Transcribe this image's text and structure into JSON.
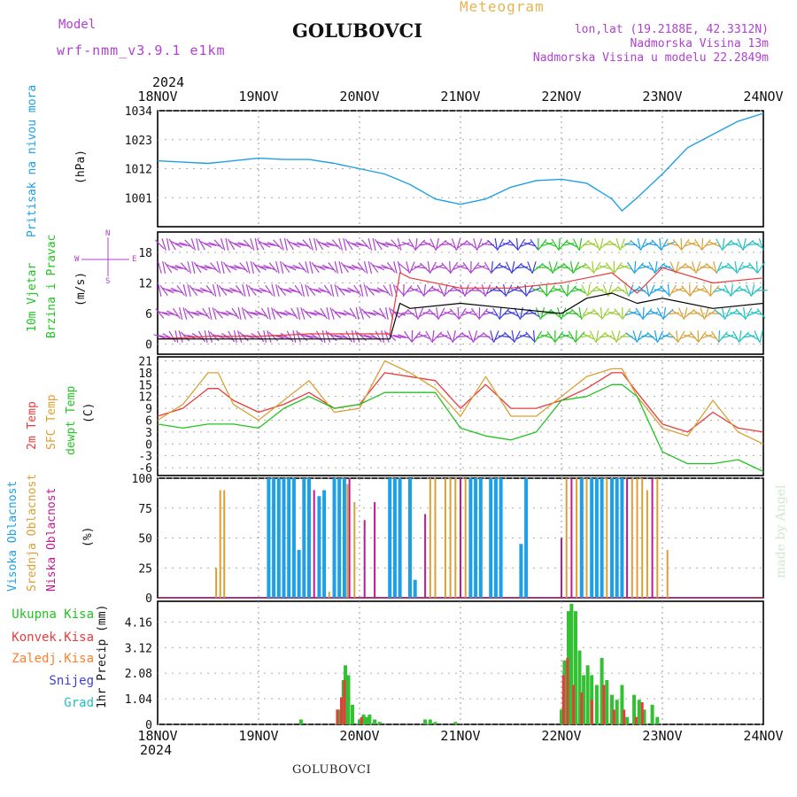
{
  "header": {
    "model_label": "Model",
    "model_name": "wrf-nmm_v3.9.1 e1km",
    "title": "GOLUBOVCI",
    "subtitle": "Meteogram",
    "coords": "lon,lat (19.2188E, 42.3312N)",
    "altitude": "Nadmorska Visina 13m",
    "model_altitude": "Nadmorska Visina u modelu 22.2849m"
  },
  "footer": {
    "station": "GOLUBOVCI",
    "watermark": "made by Angel"
  },
  "colors": {
    "pressure": "#1ea0e6",
    "wind_label": "#22c322",
    "wind_dir": "#b040d0",
    "t2m": "#e83c3c",
    "tsfc": "#d9a035",
    "dewpt": "#22c322",
    "cloud_high": "#1ea0e6",
    "cloud_mid": "#d9a035",
    "cloud_low": "#c01a90",
    "precip_total": "#33c033",
    "precip_conv": "#e83c3c",
    "precip_frozen": "#ff7f2a",
    "precip_snow": "#3c3ce0",
    "precip_grad": "#20c0c0",
    "purple_text": "#b040d0",
    "gold_text": "#e6b450"
  },
  "chart_data": [
    {
      "type": "line",
      "name": "pressure",
      "ylabel": "Pritisak na nivou mora",
      "unit": "(hPa)",
      "year": "2024",
      "x_ticks": [
        "18NOV",
        "19NOV",
        "20NOV",
        "21NOV",
        "22NOV",
        "23NOV",
        "24NOV"
      ],
      "ylim": [
        990,
        1034
      ],
      "y_ticks": [
        "1034",
        "1023",
        "1012",
        "1001"
      ],
      "y_tick_values": [
        1034,
        1023,
        1012,
        1001
      ],
      "x": [
        0,
        0.25,
        0.5,
        0.75,
        1,
        1.25,
        1.5,
        1.75,
        2,
        2.25,
        2.5,
        2.75,
        3,
        3.25,
        3.5,
        3.75,
        4,
        4.25,
        4.5,
        4.6,
        4.75,
        5,
        5.25,
        5.5,
        5.75,
        6
      ],
      "values": [
        1015,
        1014.5,
        1014,
        1015,
        1016,
        1015.5,
        1015.5,
        1014,
        1012,
        1010,
        1006,
        1000.5,
        998.5,
        1000.5,
        1005,
        1007.5,
        1008,
        1006.5,
        1000.5,
        996,
        1001,
        1010,
        1020,
        1025,
        1030,
        1033
      ]
    },
    {
      "type": "line",
      "name": "wind",
      "ylabel_line1": "10m Vjetar",
      "ylabel_line2": "Brzina i Pravac",
      "unit": "(m/s)",
      "compass": {
        "north": "N",
        "south": "S",
        "east": "E",
        "west": "W"
      },
      "ylim": [
        -2,
        22
      ],
      "y_ticks": [
        "18",
        "12",
        "6",
        "0"
      ],
      "y_tick_values": [
        18,
        12,
        6,
        0
      ],
      "x": [
        0,
        0.5,
        1,
        1.5,
        2,
        2.3,
        2.4,
        2.5,
        3,
        3.5,
        4,
        4.25,
        4.5,
        4.75,
        5,
        5.5,
        6
      ],
      "speed": [
        1,
        1,
        1,
        1,
        1,
        1,
        8,
        7,
        8,
        7,
        6,
        9,
        10,
        8,
        9,
        7,
        8
      ],
      "gust": [
        1,
        1.5,
        1.5,
        2,
        2,
        2,
        14,
        13,
        11,
        11,
        12,
        13,
        14,
        10,
        15,
        12,
        13
      ]
    },
    {
      "type": "line",
      "name": "temperature",
      "ylabel_line1": "2m Temp",
      "ylabel_line2": "SFC Temp",
      "ylabel_line3": "dewpt Temp",
      "unit": "(C)",
      "ylim": [
        -8,
        22
      ],
      "y_ticks": [
        "21",
        "18",
        "15",
        "12",
        "9",
        "6",
        "3",
        "0",
        "-3",
        "-6"
      ],
      "y_tick_values": [
        21,
        18,
        15,
        12,
        9,
        6,
        3,
        0,
        -3,
        -6
      ],
      "x": [
        0,
        0.25,
        0.5,
        0.6,
        0.75,
        1,
        1.25,
        1.5,
        1.75,
        2,
        2.25,
        2.5,
        2.75,
        3,
        3.25,
        3.5,
        3.75,
        4,
        4.25,
        4.5,
        4.6,
        4.75,
        5,
        5.25,
        5.5,
        5.75,
        6
      ],
      "series": [
        {
          "name": "2m Temp",
          "key": "t2m",
          "values": [
            7,
            9,
            14,
            14,
            11,
            8,
            10,
            13,
            9,
            10,
            18,
            17,
            16,
            9,
            15,
            9,
            9,
            11,
            14,
            18,
            18,
            13,
            5,
            3,
            8,
            4,
            3
          ]
        },
        {
          "name": "SFC Temp",
          "key": "tsfc",
          "values": [
            6,
            10,
            18,
            18,
            10,
            6,
            11,
            16,
            8,
            9,
            21,
            18,
            14,
            7,
            17,
            7,
            7,
            12,
            17,
            19,
            19,
            12,
            4,
            2,
            11,
            3,
            0
          ]
        },
        {
          "name": "dewpt Temp",
          "key": "dewpt",
          "values": [
            5,
            4,
            5,
            5,
            5,
            4,
            9,
            12,
            9,
            10,
            13,
            13,
            13,
            4,
            2,
            1,
            3,
            11,
            12,
            15,
            15,
            12,
            -2,
            -5,
            -5,
            -4,
            -7
          ]
        }
      ]
    },
    {
      "type": "bar",
      "name": "clouds",
      "ylabel_line1": "Visoka Oblacnost",
      "ylabel_line2": "Srednja Oblacnost",
      "ylabel_line3": "Niska Oblacnost",
      "unit": "(%)",
      "ylim": [
        0,
        100
      ],
      "y_ticks": [
        "100",
        "75",
        "50",
        "25",
        "0"
      ],
      "y_tick_values": [
        100,
        75,
        50,
        25,
        0
      ],
      "series": [
        {
          "name": "Visoka Oblacnost",
          "key": "cloud_high",
          "x": [
            1.1,
            1.15,
            1.2,
            1.25,
            1.3,
            1.35,
            1.4,
            1.45,
            1.5,
            1.6,
            1.65,
            1.75,
            1.8,
            1.85,
            2.3,
            2.35,
            2.4,
            2.5,
            2.55,
            3.1,
            3.15,
            3.2,
            3.3,
            3.35,
            3.4,
            3.6,
            3.65,
            4.2,
            4.3,
            4.35,
            4.4,
            4.5,
            4.55,
            4.6
          ],
          "values": [
            100,
            100,
            100,
            100,
            100,
            100,
            40,
            100,
            100,
            85,
            90,
            100,
            100,
            100,
            100,
            100,
            100,
            100,
            15,
            100,
            100,
            100,
            100,
            100,
            100,
            45,
            100,
            100,
            100,
            100,
            100,
            100,
            100,
            100
          ]
        },
        {
          "name": "Srednja Oblacnost",
          "key": "cloud_mid",
          "x": [
            0.58,
            0.62,
            0.66,
            1.7,
            1.88,
            1.95,
            2.7,
            2.75,
            2.85,
            2.9,
            2.95,
            3.05,
            4.05,
            4.15,
            4.25,
            4.45,
            4.7,
            4.75,
            4.8,
            4.85,
            4.95,
            5.05
          ],
          "values": [
            25,
            90,
            90,
            5,
            95,
            80,
            100,
            100,
            100,
            100,
            100,
            100,
            100,
            100,
            100,
            100,
            100,
            100,
            100,
            90,
            100,
            40
          ]
        },
        {
          "name": "Niska Oblacnost",
          "key": "cloud_low",
          "x": [
            1.55,
            1.9,
            2.05,
            2.15,
            2.65,
            3.0,
            4.0,
            4.1,
            4.65,
            4.9
          ],
          "values": [
            90,
            100,
            65,
            80,
            70,
            100,
            50,
            100,
            100,
            100
          ]
        }
      ]
    },
    {
      "type": "bar",
      "name": "precipitation",
      "ylabel": "1hr Precip (mm)",
      "legend": [
        "Ukupna Kisa",
        "Konvek.Kisa",
        "Zaledj.Kisa",
        "Snijeg",
        "Grad"
      ],
      "ylim": [
        0,
        5
      ],
      "y_ticks": [
        "4.16",
        "3.12",
        "2.08",
        "1.04",
        "0"
      ],
      "y_tick_values": [
        4.16,
        3.12,
        2.08,
        1.04,
        0
      ],
      "series": [
        {
          "name": "Ukupna Kisa",
          "key": "precip_total",
          "x": [
            1.42,
            1.8,
            1.84,
            1.86,
            1.89,
            1.93,
            2.0,
            2.04,
            2.07,
            2.1,
            2.15,
            2.2,
            2.65,
            2.7,
            2.75,
            2.95,
            4.0,
            4.03,
            4.07,
            4.1,
            4.14,
            4.18,
            4.22,
            4.26,
            4.3,
            4.35,
            4.4,
            4.45,
            4.5,
            4.55,
            4.6,
            4.65,
            4.72,
            4.77,
            4.82,
            4.9,
            4.95
          ],
          "values": [
            0.2,
            0.6,
            1.8,
            2.4,
            2.0,
            0.8,
            0.2,
            0.4,
            0.3,
            0.4,
            0.2,
            0.1,
            0.2,
            0.2,
            0.1,
            0.1,
            0.6,
            2.6,
            4.6,
            4.9,
            4.6,
            3.0,
            2.0,
            2.4,
            2.0,
            1.6,
            2.7,
            1.8,
            1.2,
            1.0,
            1.6,
            0.3,
            1.2,
            1.0,
            0.6,
            0.8,
            0.3
          ]
        },
        {
          "name": "Konvek.Kisa",
          "key": "precip_conv",
          "x": [
            1.78,
            1.82,
            1.85,
            2.02,
            4.02,
            4.06,
            4.12,
            4.2,
            4.3,
            4.42,
            4.52,
            4.62,
            4.74,
            4.8
          ],
          "values": [
            0.6,
            1.1,
            1.8,
            0.3,
            2.0,
            2.7,
            1.6,
            1.3,
            1.0,
            1.6,
            0.6,
            0.6,
            0.3,
            0.9
          ]
        }
      ]
    }
  ]
}
